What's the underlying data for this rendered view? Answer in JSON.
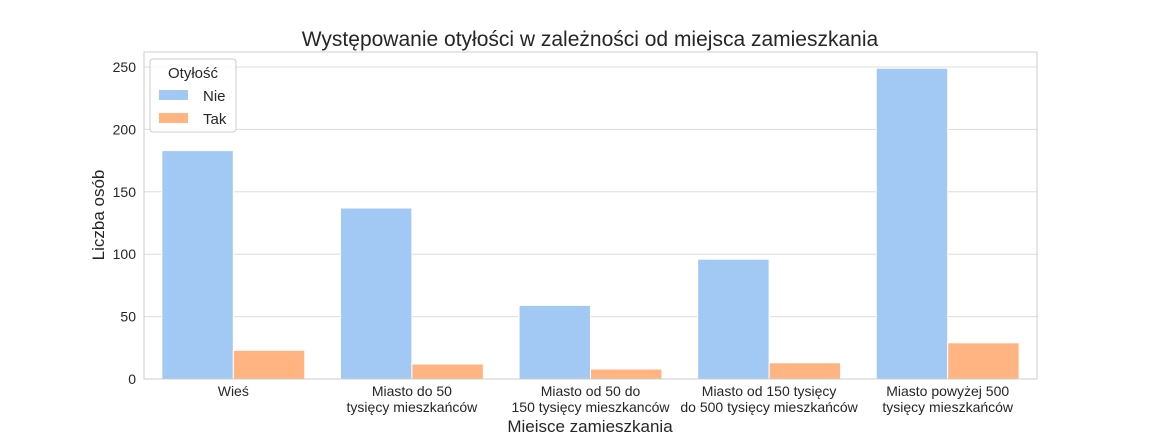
{
  "chart_data": {
    "type": "bar",
    "title": "Występowanie otyłości w zależności od miejsca zamieszkania",
    "xlabel": "Miejsce zamieszkania",
    "ylabel": "Liczba osób",
    "categories": [
      "Wieś",
      "Miasto do 50\ntysięcy mieszkańców",
      "Miasto od 50 do\n150 tysięcy mieszkanców",
      "Miasto od 150 tysięcy\ndo 500 tysięcy mieszkańców",
      "Miasto powyżej 500\ntysięcy mieszkańców"
    ],
    "series": [
      {
        "name": "Nie",
        "color": "#a1c9f4",
        "values": [
          183,
          137,
          59,
          96,
          249
        ]
      },
      {
        "name": "Tak",
        "color": "#ffb482",
        "values": [
          23,
          12,
          8,
          13,
          29
        ]
      }
    ],
    "ylim": [
      0,
      262
    ],
    "yticks": [
      0,
      50,
      100,
      150,
      200,
      250
    ],
    "legend": {
      "title": "Otyłość",
      "placement": "top-left"
    },
    "grid": true
  }
}
